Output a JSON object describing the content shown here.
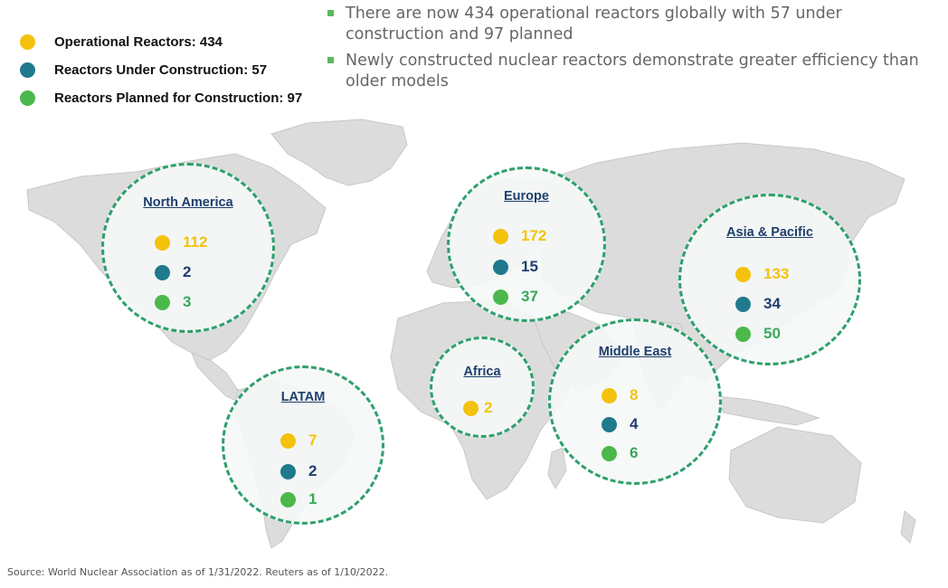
{
  "colors": {
    "operational": "#f4c20d",
    "under_construction": "#1e7a8c",
    "planned": "#4cb84c",
    "circle_border": "#2ea06b",
    "title_blue": "#1f3e6e"
  },
  "legend": [
    {
      "label": "Operational Reactors: 434",
      "color": "#f4c20d"
    },
    {
      "label": "Reactors Under Construction: 57",
      "color": "#1e7a8c"
    },
    {
      "label": "Reactors Planned for Construction: 97",
      "color": "#4cb84c"
    }
  ],
  "bullets": [
    "There are now 434 operational reactors globally with 57 under construction and 97 planned",
    "Newly constructed nuclear reactors demonstrate greater efficiency than older models"
  ],
  "regions": {
    "north_america": {
      "title": "North America",
      "operational": "112",
      "under_construction": "2",
      "planned": "3"
    },
    "europe": {
      "title": "Europe",
      "operational": "172",
      "under_construction": "15",
      "planned": "37"
    },
    "asia_pacific": {
      "title": "Asia & Pacific",
      "operational": "133",
      "under_construction": "34",
      "planned": "50"
    },
    "africa": {
      "title": "Africa",
      "operational": "2"
    },
    "middle_east": {
      "title": "Middle East",
      "operational": "8",
      "under_construction": "4",
      "planned": "6"
    },
    "latam": {
      "title": "LATAM",
      "operational": "7",
      "under_construction": "2",
      "planned": "1"
    }
  },
  "source": "Source: World Nuclear Association as of 1/31/2022. Reuters as of 1/10/2022."
}
